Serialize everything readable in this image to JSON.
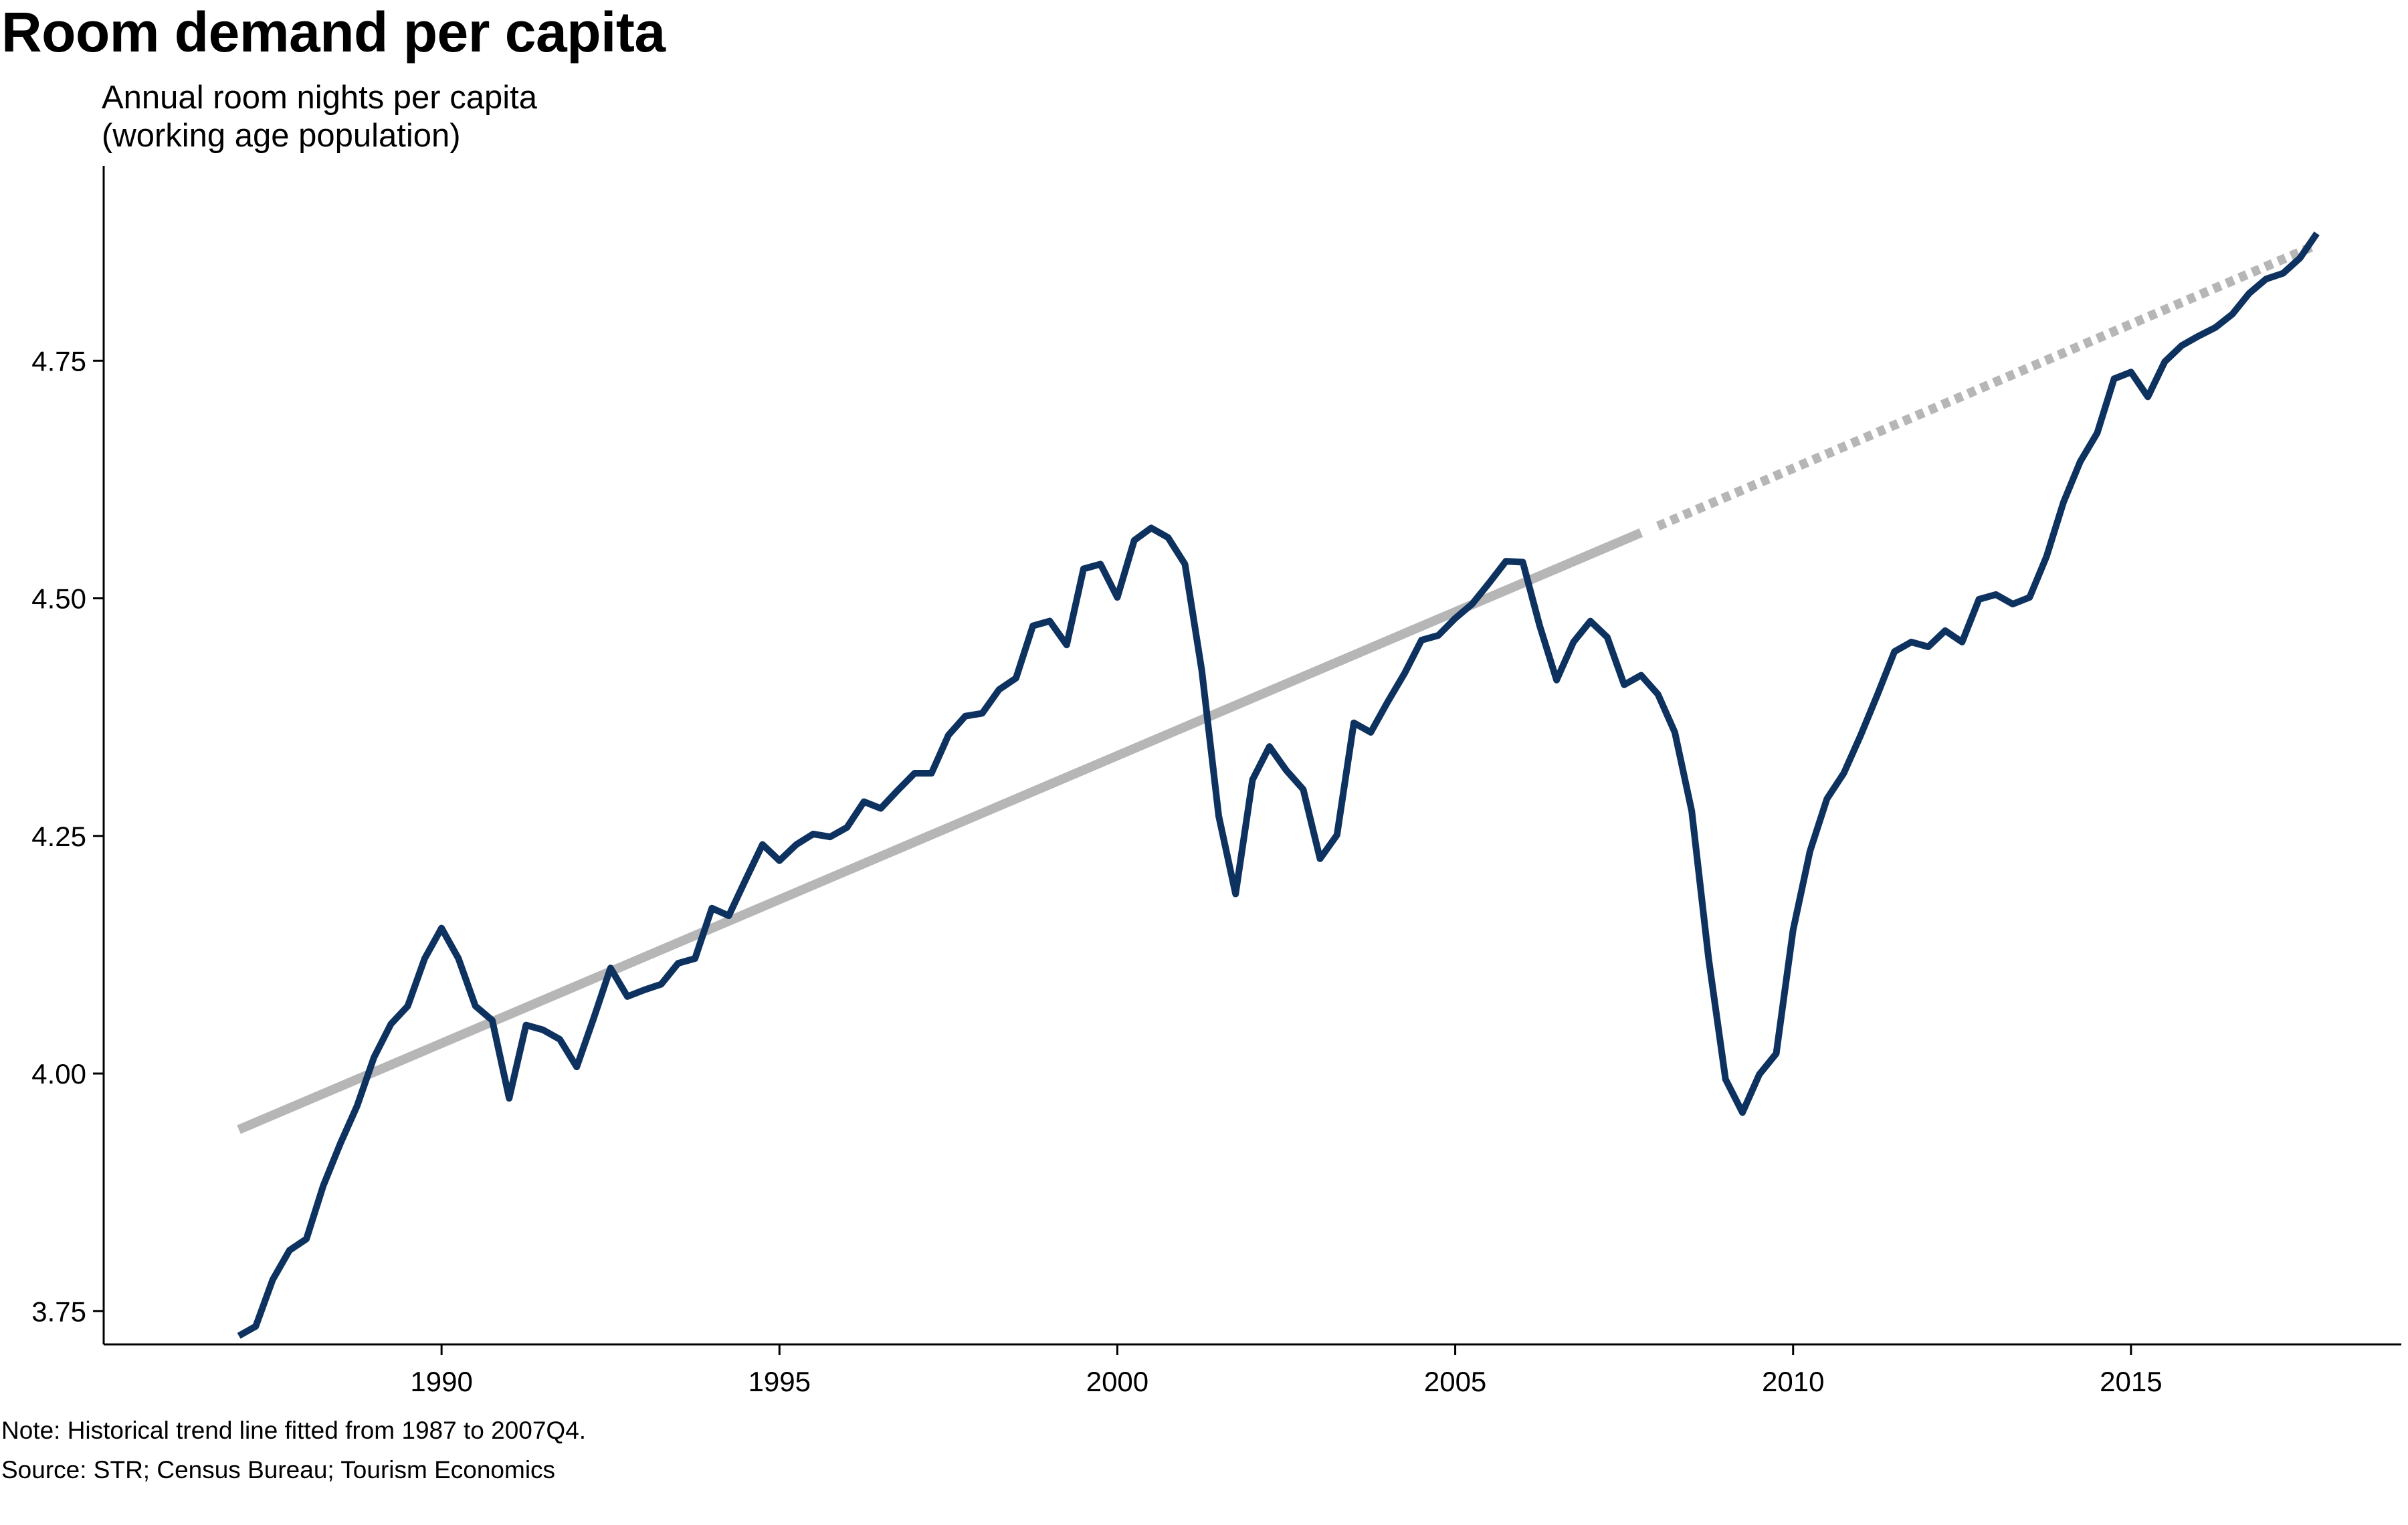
{
  "chart_data": {
    "type": "line",
    "title": "Room demand per capita",
    "ylabel_lines": [
      "Annual room nights per capita",
      "(working age population)"
    ],
    "xlabel": "",
    "ylim": [
      3.715,
      4.955
    ],
    "xlim": [
      1985.0,
      2019.0
    ],
    "yticks": [
      3.75,
      4.0,
      4.25,
      4.5,
      4.75
    ],
    "ytick_labels": [
      "3.75",
      "4.00",
      "4.25",
      "4.50",
      "4.75"
    ],
    "xticks": [
      1990,
      1995,
      2000,
      2005,
      2010,
      2015
    ],
    "xtick_labels": [
      "1990",
      "1995",
      "2000",
      "2005",
      "2010",
      "2015"
    ],
    "grid": false,
    "colors": {
      "series": "#0e3260",
      "trend": "#b6b6b6"
    },
    "series": [
      {
        "x": [
          1987.0,
          1987.25,
          1987.5,
          1987.75,
          1988.0,
          1988.25,
          1988.5,
          1988.75,
          1989.0,
          1989.25,
          1989.5,
          1989.75,
          1990.0,
          1990.25,
          1990.5,
          1990.75,
          1991.0,
          1991.25,
          1991.5,
          1991.75,
          1992.0,
          1992.25,
          1992.5,
          1992.75,
          1993.0,
          1993.25,
          1993.5,
          1993.75,
          1994.0,
          1994.25,
          1994.5,
          1994.75,
          1995.0,
          1995.25,
          1995.5,
          1995.75,
          1996.0,
          1996.25,
          1996.5,
          1996.75,
          1997.0,
          1997.25,
          1997.5,
          1997.75,
          1998.0,
          1998.25,
          1998.5,
          1998.75,
          1999.0,
          1999.25,
          1999.5,
          1999.75,
          2000.0,
          2000.25,
          2000.5,
          2000.75,
          2001.0,
          2001.25,
          2001.5,
          2001.75,
          2002.0,
          2002.25,
          2002.5,
          2002.75,
          2003.0,
          2003.25,
          2003.5,
          2003.75,
          2004.0,
          2004.25,
          2004.5,
          2004.75,
          2005.0,
          2005.25,
          2005.5,
          2005.75,
          2006.0,
          2006.25,
          2006.5,
          2006.75,
          2007.0,
          2007.25,
          2007.5,
          2007.75,
          2008.0,
          2008.25,
          2008.5,
          2008.75,
          2009.0,
          2009.25,
          2009.5,
          2009.75,
          2010.0,
          2010.25,
          2010.5,
          2010.75,
          2011.0,
          2011.25,
          2011.5,
          2011.75,
          2012.0,
          2012.25,
          2012.5,
          2012.75,
          2013.0,
          2013.25,
          2013.5,
          2013.75,
          2014.0,
          2014.25,
          2014.5,
          2014.75,
          2015.0,
          2015.25,
          2015.5,
          2015.75,
          2016.0,
          2016.25,
          2016.5,
          2016.75,
          2017.0,
          2017.25,
          2017.5,
          2017.75
        ],
        "values": [
          3.724,
          3.734,
          3.783,
          3.814,
          3.826,
          3.882,
          3.926,
          3.966,
          4.017,
          4.052,
          4.071,
          4.121,
          4.153,
          4.121,
          4.071,
          4.056,
          3.974,
          4.051,
          4.046,
          4.036,
          4.007,
          4.058,
          4.111,
          4.081,
          4.088,
          4.094,
          4.116,
          4.121,
          4.174,
          4.166,
          4.204,
          4.241,
          4.224,
          4.241,
          4.252,
          4.249,
          4.259,
          4.286,
          4.279,
          4.298,
          4.316,
          4.316,
          4.356,
          4.376,
          4.379,
          4.404,
          4.416,
          4.471,
          4.476,
          4.451,
          4.531,
          4.536,
          4.501,
          4.561,
          4.574,
          4.564,
          4.536,
          4.424,
          4.271,
          4.189,
          4.309,
          4.344,
          4.319,
          4.299,
          4.226,
          4.251,
          4.369,
          4.359,
          4.391,
          4.421,
          4.456,
          4.461,
          4.479,
          4.494,
          4.516,
          4.539,
          4.538,
          4.471,
          4.414,
          4.454,
          4.476,
          4.459,
          4.409,
          4.419,
          4.399,
          4.359,
          4.276,
          4.121,
          3.994,
          3.959,
          3.999,
          4.021,
          4.151,
          4.234,
          4.289,
          4.316,
          4.356,
          4.399,
          4.444,
          4.454,
          4.449,
          4.466,
          4.454,
          4.499,
          4.504,
          4.494,
          4.501,
          4.544,
          4.601,
          4.644,
          4.674,
          4.731,
          4.738,
          4.712,
          4.749,
          4.766,
          4.776,
          4.785,
          4.799,
          4.821,
          4.836,
          4.842,
          4.858,
          4.884
        ]
      }
    ],
    "trend_solid": {
      "x": [
        1987.0,
        2007.75
      ],
      "values": [
        3.941,
        4.569
      ]
    },
    "trend_dotted": {
      "x": [
        2008.0,
        2017.75
      ],
      "values": [
        4.576,
        4.872
      ]
    }
  },
  "notes": {
    "note": "Note: Historical trend line fitted from 1987 to 2007Q4.",
    "source": "Source: STR; Census Bureau; Tourism Economics"
  }
}
